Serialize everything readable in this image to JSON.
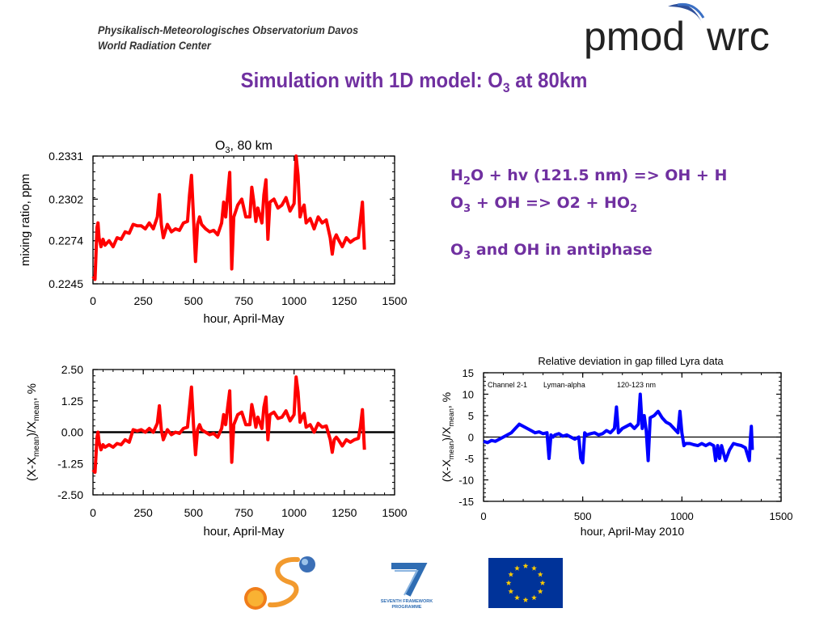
{
  "header": {
    "org_line1": "Physikalisch-Meteorologisches Observatorium Davos",
    "org_line2": "World Radiation Center",
    "logo_left": "pmod",
    "logo_right": "wrc"
  },
  "title": {
    "prefix": "Simulation with 1D model: O",
    "sub": "3",
    "suffix": " at 80km"
  },
  "reactions": {
    "line1": {
      "a": "H",
      "a_sub": "2",
      "b": "O + hv (121.5 nm) => OH + H"
    },
    "line2": {
      "a": "O",
      "a_sub": "3",
      "b": " + OH => O2 + HO",
      "b_sub": "2"
    },
    "line3": {
      "a": "O",
      "a_sub": "3",
      "b": "  and OH in antiphase"
    }
  },
  "colors": {
    "title": "#7030a0",
    "series_red": "#ff0000",
    "series_blue": "#0000ff"
  },
  "footer": {
    "fp7_text1": "SEVENTH FRAMEWORK",
    "fp7_text2": "PROGRAMME",
    "icons": [
      "solar-s-logo-icon",
      "fp7-logo-icon",
      "eu-flag-icon"
    ]
  },
  "chart_data": [
    {
      "id": "chart1",
      "type": "line",
      "title_main": "O",
      "title_sub": "3",
      "title_rest": ", 80 km",
      "xlabel": "hour, April-May",
      "ylabel": "mixing ratio, ppm",
      "xlim": [
        0,
        1500
      ],
      "ylim": [
        0.2245,
        0.2331
      ],
      "xticks": [
        0,
        250,
        500,
        750,
        1000,
        1250,
        1500
      ],
      "yticks": [
        0.2245,
        0.2274,
        0.2302,
        0.2331
      ],
      "ytick_labels": [
        "0.2245",
        "0.2274",
        "0.2302",
        "0.2331"
      ],
      "series": [
        {
          "color": "#ff0000",
          "x": [
            0,
            10,
            20,
            25,
            30,
            40,
            50,
            60,
            80,
            100,
            120,
            140,
            160,
            180,
            200,
            220,
            240,
            260,
            280,
            300,
            320,
            330,
            340,
            350,
            370,
            390,
            410,
            430,
            450,
            470,
            480,
            490,
            500,
            510,
            520,
            530,
            540,
            560,
            580,
            600,
            620,
            640,
            650,
            660,
            670,
            680,
            690,
            700,
            710,
            720,
            740,
            760,
            780,
            790,
            800,
            810,
            820,
            840,
            850,
            860,
            870,
            880,
            900,
            920,
            940,
            960,
            980,
            1000,
            1010,
            1020,
            1030,
            1040,
            1050,
            1060,
            1080,
            1100,
            1120,
            1140,
            1160,
            1180,
            1190,
            1200,
            1210,
            1220,
            1240,
            1260,
            1280,
            1300,
            1320,
            1330,
            1340,
            1350
          ],
          "y": [
            0.225,
            0.2248,
            0.2283,
            0.2286,
            0.2276,
            0.227,
            0.2275,
            0.2271,
            0.2274,
            0.227,
            0.2276,
            0.2275,
            0.228,
            0.2279,
            0.2285,
            0.2284,
            0.2284,
            0.2282,
            0.2286,
            0.2282,
            0.229,
            0.2305,
            0.2285,
            0.2276,
            0.2285,
            0.228,
            0.2282,
            0.2281,
            0.2286,
            0.2287,
            0.2305,
            0.2318,
            0.229,
            0.226,
            0.2285,
            0.229,
            0.2285,
            0.2282,
            0.228,
            0.2281,
            0.2278,
            0.2286,
            0.23,
            0.229,
            0.2305,
            0.232,
            0.2255,
            0.229,
            0.2294,
            0.2298,
            0.2302,
            0.229,
            0.229,
            0.231,
            0.23,
            0.2287,
            0.2296,
            0.2286,
            0.2305,
            0.2315,
            0.2275,
            0.23,
            0.2302,
            0.2296,
            0.2298,
            0.2303,
            0.2294,
            0.2299,
            0.2331,
            0.2318,
            0.229,
            0.2295,
            0.2298,
            0.2286,
            0.2289,
            0.2282,
            0.229,
            0.2286,
            0.2288,
            0.2276,
            0.2265,
            0.2275,
            0.2278,
            0.2275,
            0.227,
            0.2276,
            0.2273,
            0.2275,
            0.2276,
            0.2288,
            0.23,
            0.2268
          ]
        }
      ]
    },
    {
      "id": "chart2",
      "type": "line",
      "xlabel": "hour, April-May",
      "ylabel": "(X-X_mean)/X_mean, %",
      "xlim": [
        0,
        1500
      ],
      "ylim": [
        -2.5,
        2.5
      ],
      "xticks": [
        0,
        250,
        500,
        750,
        1000,
        1250,
        1500
      ],
      "yticks": [
        -2.5,
        -1.25,
        0,
        1.25,
        2.5
      ],
      "ytick_labels": [
        "-2.50",
        "-1.25",
        "0.00",
        "1.25",
        "2.50"
      ],
      "series": [
        {
          "color": "#ff0000",
          "x": [
            0,
            10,
            20,
            25,
            30,
            40,
            50,
            60,
            80,
            100,
            120,
            140,
            160,
            180,
            200,
            220,
            240,
            260,
            280,
            300,
            320,
            330,
            340,
            350,
            370,
            390,
            410,
            430,
            450,
            470,
            480,
            490,
            500,
            510,
            520,
            530,
            540,
            560,
            580,
            600,
            620,
            640,
            650,
            660,
            670,
            680,
            690,
            700,
            710,
            720,
            740,
            760,
            780,
            790,
            800,
            810,
            820,
            840,
            850,
            860,
            870,
            880,
            900,
            920,
            940,
            960,
            980,
            1000,
            1010,
            1020,
            1030,
            1040,
            1050,
            1060,
            1080,
            1100,
            1120,
            1140,
            1160,
            1180,
            1190,
            1200,
            1210,
            1220,
            1240,
            1260,
            1280,
            1300,
            1320,
            1330,
            1340,
            1350
          ],
          "y": [
            -1.5,
            -1.6,
            -0.2,
            0.0,
            -0.4,
            -0.7,
            -0.5,
            -0.6,
            -0.5,
            -0.6,
            -0.45,
            -0.5,
            -0.3,
            -0.4,
            0.1,
            0.05,
            0.1,
            0.0,
            0.15,
            0.0,
            0.35,
            1.05,
            0.1,
            -0.3,
            0.1,
            -0.1,
            0.0,
            -0.05,
            0.15,
            0.2,
            1.0,
            1.8,
            0.3,
            -0.9,
            0.1,
            0.3,
            0.1,
            0.0,
            -0.1,
            -0.05,
            -0.2,
            0.15,
            0.7,
            0.3,
            1.0,
            1.65,
            -1.2,
            0.3,
            0.5,
            0.7,
            0.8,
            0.3,
            0.3,
            1.1,
            0.7,
            0.2,
            0.6,
            0.15,
            1.0,
            1.4,
            -0.3,
            0.7,
            0.8,
            0.55,
            0.6,
            0.85,
            0.45,
            0.7,
            2.2,
            1.6,
            0.4,
            0.6,
            0.75,
            0.2,
            0.3,
            0.0,
            0.35,
            0.2,
            0.25,
            -0.3,
            -0.8,
            -0.3,
            -0.2,
            -0.3,
            -0.55,
            -0.3,
            -0.4,
            -0.3,
            -0.25,
            0.2,
            0.9,
            -0.7
          ]
        }
      ]
    },
    {
      "id": "chart3",
      "type": "line",
      "title": "Relative deviation in gap filled Lyra data",
      "annotations": [
        "Channel 2-1",
        "Lyman-alpha",
        "120-123 nm"
      ],
      "xlabel": "hour, April-May 2010",
      "ylabel": "(X-X_mean)/X_mean, %",
      "xlim": [
        0,
        1500
      ],
      "ylim": [
        -15,
        15
      ],
      "xticks": [
        0,
        500,
        1000,
        1500
      ],
      "yticks": [
        -15,
        -10,
        -5,
        0,
        5,
        10,
        15
      ],
      "ytick_labels": [
        "-15",
        "-10",
        "-5",
        "0",
        "5",
        "10",
        "15"
      ],
      "series": [
        {
          "color": "#0000ff",
          "x": [
            0,
            20,
            40,
            60,
            80,
            100,
            120,
            140,
            160,
            180,
            200,
            220,
            240,
            260,
            280,
            300,
            320,
            330,
            340,
            350,
            360,
            380,
            400,
            420,
            440,
            460,
            480,
            490,
            500,
            510,
            520,
            540,
            560,
            580,
            600,
            620,
            640,
            660,
            670,
            680,
            690,
            700,
            720,
            740,
            760,
            780,
            790,
            800,
            810,
            820,
            830,
            840,
            860,
            880,
            900,
            920,
            940,
            960,
            980,
            990,
            1000,
            1010,
            1020,
            1040,
            1060,
            1080,
            1100,
            1120,
            1140,
            1160,
            1170,
            1180,
            1190,
            1200,
            1220,
            1240,
            1260,
            1280,
            1300,
            1320,
            1340,
            1345,
            1350,
            1355
          ],
          "y": [
            -1.0,
            -1.3,
            -0.8,
            -1.0,
            -0.5,
            0.0,
            0.5,
            1.0,
            2.0,
            3.0,
            2.5,
            2.0,
            1.5,
            1.0,
            1.2,
            0.8,
            1.0,
            -5.0,
            0.5,
            0.0,
            0.5,
            0.8,
            0.2,
            0.5,
            0.0,
            -0.5,
            0.0,
            -5.0,
            -6.0,
            1.0,
            0.5,
            0.8,
            1.0,
            0.5,
            0.8,
            1.5,
            1.0,
            2.0,
            7.0,
            1.0,
            1.5,
            2.0,
            2.5,
            3.0,
            2.0,
            3.0,
            10.0,
            2.0,
            5.0,
            1.5,
            -5.5,
            4.5,
            5.0,
            6.0,
            4.5,
            3.5,
            3.0,
            2.0,
            1.0,
            6.0,
            1.0,
            -2.0,
            -1.5,
            -1.5,
            -1.8,
            -2.0,
            -1.5,
            -2.0,
            -1.5,
            -2.0,
            -5.5,
            -2.0,
            -5.0,
            -2.0,
            -5.5,
            -3.0,
            -1.5,
            -1.8,
            -2.0,
            -2.5,
            -5.5,
            -0.5,
            2.5,
            -3.0
          ]
        }
      ]
    }
  ]
}
